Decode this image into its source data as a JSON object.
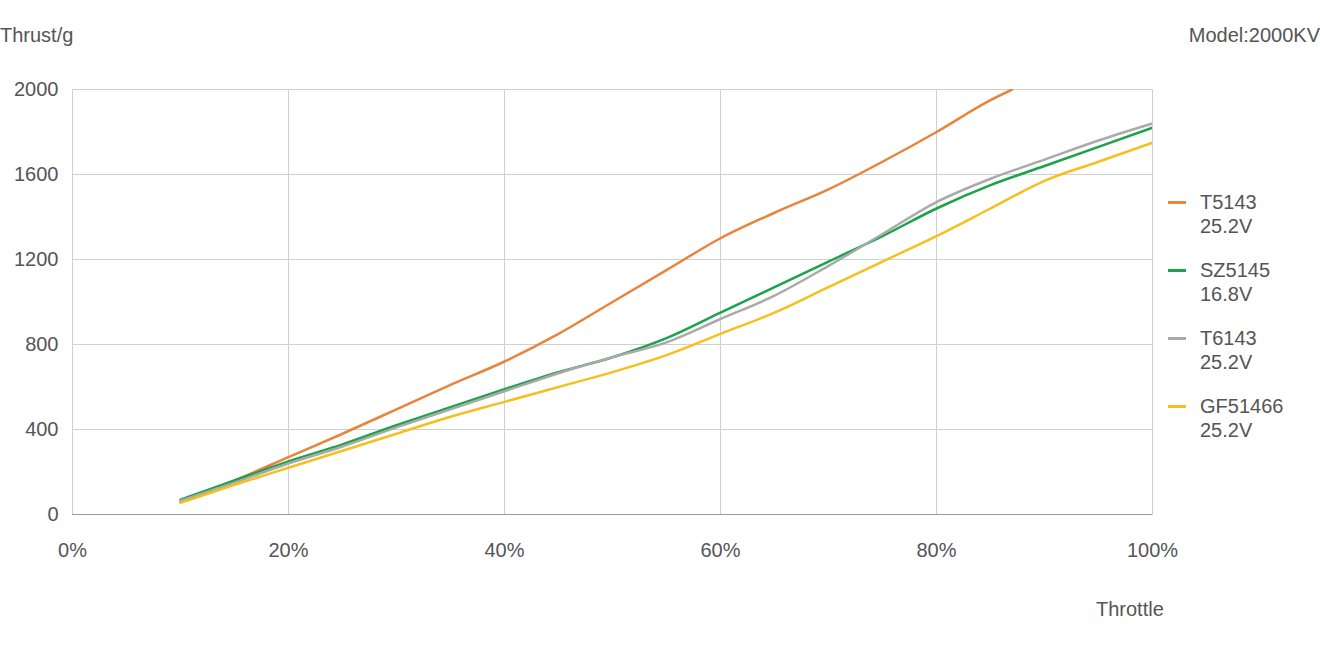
{
  "chart_data": {
    "type": "line",
    "y_label": "Thrust/g",
    "x_label": "Throttle",
    "annotation": "Model:2000KV",
    "xlim": [
      0,
      100
    ],
    "xticks": [
      {
        "value": 0,
        "label": "0%"
      },
      {
        "value": 20,
        "label": "20%"
      },
      {
        "value": 40,
        "label": "40%"
      },
      {
        "value": 60,
        "label": "60%"
      },
      {
        "value": 80,
        "label": "80%"
      },
      {
        "value": 100,
        "label": "100%"
      }
    ],
    "ylim": [
      0,
      2000
    ],
    "yticks": [
      0,
      400,
      800,
      1200,
      1600,
      2000
    ],
    "grid": true,
    "legend": "right",
    "series": [
      {
        "name": "T5143\n25.2V",
        "color": "#e8843c",
        "x": [
          10,
          15,
          20,
          25,
          30,
          35,
          40,
          45,
          50,
          55,
          60,
          65,
          70,
          75,
          80,
          85,
          87
        ],
        "values": [
          60,
          160,
          270,
          380,
          495,
          610,
          720,
          850,
          1000,
          1150,
          1300,
          1420,
          1530,
          1660,
          1800,
          1950,
          2000
        ]
      },
      {
        "name": "SZ5145\n16.8V",
        "color": "#1aa34a",
        "x": [
          10,
          15,
          20,
          25,
          30,
          35,
          40,
          45,
          50,
          55,
          60,
          65,
          70,
          75,
          80,
          85,
          90,
          95,
          100
        ],
        "values": [
          70,
          160,
          250,
          330,
          420,
          505,
          590,
          670,
          740,
          830,
          950,
          1070,
          1190,
          1310,
          1440,
          1550,
          1640,
          1730,
          1820
        ]
      },
      {
        "name": "T6143\n25.2V",
        "color": "#aaaaaa",
        "x": [
          10,
          15,
          20,
          25,
          30,
          35,
          40,
          45,
          50,
          55,
          60,
          65,
          70,
          75,
          80,
          85,
          90,
          95,
          100
        ],
        "values": [
          65,
          150,
          240,
          320,
          410,
          495,
          580,
          665,
          740,
          810,
          920,
          1030,
          1170,
          1320,
          1470,
          1580,
          1670,
          1760,
          1840
        ]
      },
      {
        "name": "GF51466\n25.2V",
        "color": "#f5c01e",
        "x": [
          10,
          15,
          20,
          25,
          30,
          35,
          40,
          45,
          50,
          55,
          60,
          65,
          70,
          75,
          80,
          85,
          90,
          95,
          100
        ],
        "values": [
          55,
          140,
          220,
          300,
          380,
          460,
          530,
          600,
          670,
          750,
          850,
          950,
          1070,
          1190,
          1310,
          1440,
          1570,
          1660,
          1750
        ]
      }
    ]
  }
}
